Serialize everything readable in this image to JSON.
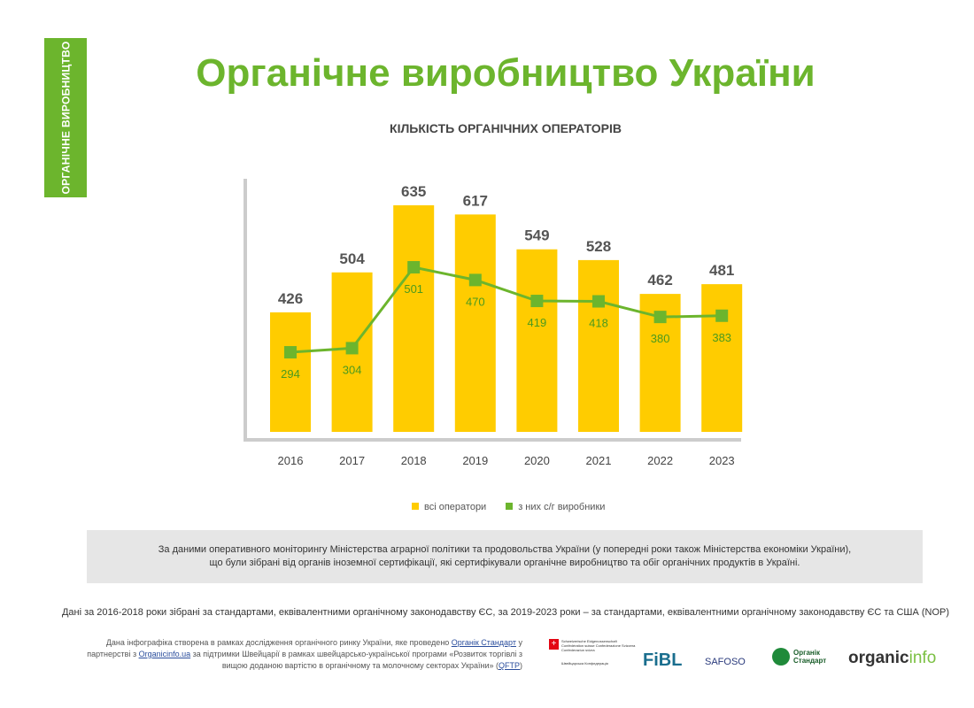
{
  "side_label": "ОРГАНІЧНЕ ВИРОБНИЦТВО",
  "title": "Органічне виробництво України",
  "chart_data": {
    "type": "bar",
    "title": "КІЛЬКІСТЬ ОРГАНІЧНИХ ОПЕРАТОРІВ",
    "categories": [
      "2016",
      "2017",
      "2018",
      "2019",
      "2020",
      "2021",
      "2022",
      "2023"
    ],
    "series": [
      {
        "name": "всі оператори",
        "type": "bar",
        "color": "#ffcc00",
        "values": [
          426,
          504,
          635,
          617,
          549,
          528,
          462,
          481
        ]
      },
      {
        "name": "з них с/г виробники",
        "type": "line",
        "color": "#6cb52d",
        "values": [
          294,
          304,
          501,
          470,
          419,
          418,
          380,
          383
        ]
      }
    ],
    "legend": "bottom"
  },
  "note_lines": [
    "За даними оперативного моніторингу Міністерства аграрної політики та продовольства України (у попередні роки також Міністерства економіки України),",
    "що були зібрані від органів іноземної сертифікації, які сертифікували органічне виробництво та обіг органічних продуктів в Україні."
  ],
  "standards_note": "Дані за 2016-2018 роки зібрані за стандартами, еквівалентними органічному законодавству ЄС, за 2019-2023 роки – за стандартами, еквівалентними органічному законодавству ЄС та США (NOP)",
  "credit": {
    "t1": "Дана інфографіка створена в рамках дослідження органічного ринку України, яке проведено ",
    "l1": "Органік Стандарт",
    "t2": " у партнерстві з ",
    "l2": "Organicinfo.ua",
    "t3": " за підтримки Швейцарії в рамках швейцарсько-української програми «Розвиток торгівлі з вищою доданою вартістю в органічному та молочному секторах України» (",
    "l3": "QFTP",
    "t4": ")"
  },
  "logos": {
    "swiss": "Schweizerische Eidgenossenschaft Confédération suisse Confederazione Svizzera Confederaziun svizra",
    "swiss_ua": "Швейцарська Конфедерація",
    "fibl": "FiBL",
    "safoso": "SAFOSO",
    "os1": "Органік",
    "os2": "Стандарт",
    "oi1": "organic",
    "oi2": "info"
  }
}
